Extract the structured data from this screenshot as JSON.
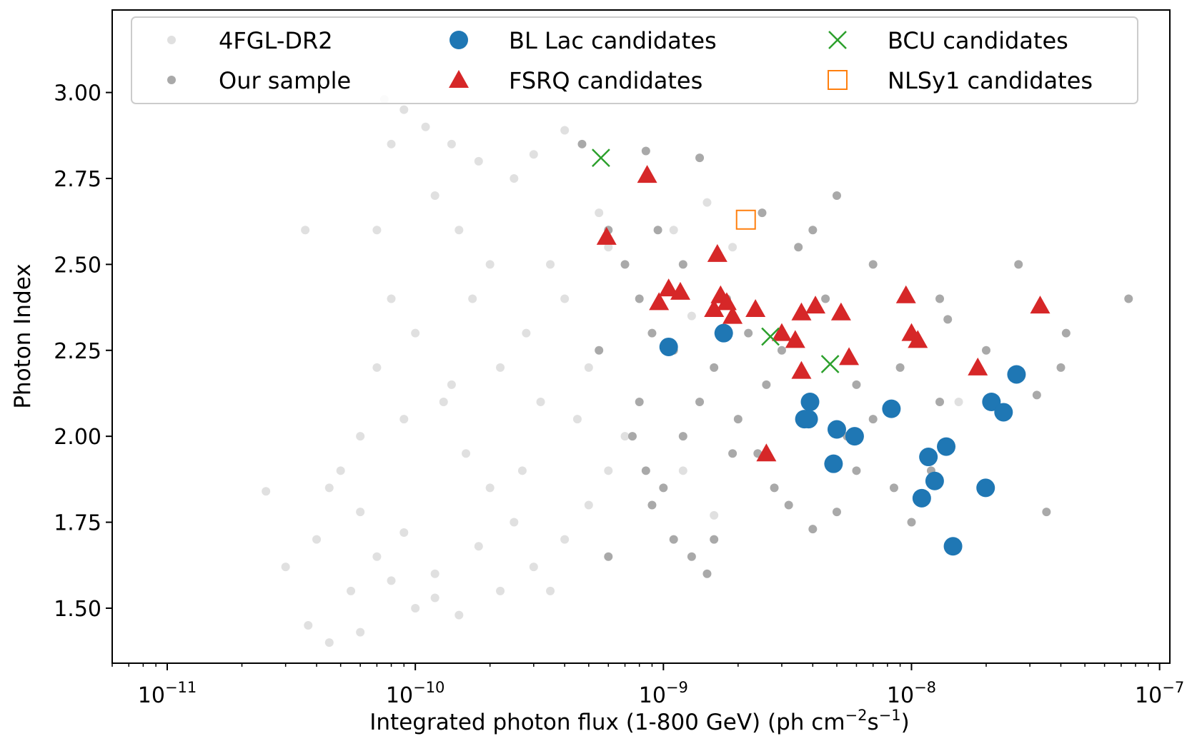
{
  "chart_data": {
    "type": "scatter",
    "xscale": "log",
    "xlabel": "Integrated photon flux (1-800 GeV) (ph cm",
    "xlabel_sup1": "−2",
    "xlabel_mid": "s",
    "xlabel_sup2": "−1",
    "xlabel_end": ")",
    "ylabel": "Photon Index",
    "xlim": [
      6e-12,
      1.1e-07
    ],
    "ylim": [
      1.34,
      3.24
    ],
    "x_ticks": [
      {
        "value": 1e-11,
        "base": "10",
        "exp": "−11"
      },
      {
        "value": 1e-10,
        "base": "10",
        "exp": "−10"
      },
      {
        "value": 1e-09,
        "base": "10",
        "exp": "−9"
      },
      {
        "value": 1e-08,
        "base": "10",
        "exp": "−8"
      },
      {
        "value": 1e-07,
        "base": "10",
        "exp": "−7"
      }
    ],
    "y_ticks": [
      {
        "value": 1.5,
        "label": "1.50"
      },
      {
        "value": 1.75,
        "label": "1.75"
      },
      {
        "value": 2.0,
        "label": "2.00"
      },
      {
        "value": 2.25,
        "label": "2.25"
      },
      {
        "value": 2.5,
        "label": "2.50"
      },
      {
        "value": 2.75,
        "label": "2.75"
      },
      {
        "value": 3.0,
        "label": "3.00"
      }
    ],
    "legend": {
      "position": "top",
      "entries": [
        {
          "label": "4FGL-DR2",
          "marker": "dot",
          "color": "#e0e0e0"
        },
        {
          "label": "BL Lac candidates",
          "marker": "circle",
          "color": "#1f77b4"
        },
        {
          "label": "BCU candidates",
          "marker": "x",
          "color": "#2ca02c"
        },
        {
          "label": "Our sample",
          "marker": "dot",
          "color": "#a9a9a9"
        },
        {
          "label": "FSRQ candidates",
          "marker": "triangle",
          "color": "#d62728"
        },
        {
          "label": "NLSy1 candidates",
          "marker": "square",
          "color": "#ff7f0e"
        }
      ]
    },
    "series": [
      {
        "name": "4FGL-DR2",
        "marker": "dot",
        "color": "#e0e0e0",
        "points": [
          [
            3.6e-11,
            2.6
          ],
          [
            3.7e-11,
            1.45
          ],
          [
            4.5e-11,
            1.4
          ],
          [
            6e-11,
            1.43
          ],
          [
            5.5e-11,
            1.55
          ],
          [
            4e-11,
            1.7
          ],
          [
            3e-11,
            1.62
          ],
          [
            2.5e-11,
            1.84
          ],
          [
            5e-11,
            1.9
          ],
          [
            4.5e-11,
            1.85
          ],
          [
            6e-11,
            1.78
          ],
          [
            7e-11,
            1.65
          ],
          [
            8e-11,
            1.58
          ],
          [
            9e-11,
            1.72
          ],
          [
            6e-11,
            2.0
          ],
          [
            7e-11,
            2.2
          ],
          [
            8e-11,
            2.4
          ],
          [
            7e-11,
            2.6
          ],
          [
            8e-11,
            2.85
          ],
          [
            9e-11,
            2.95
          ],
          [
            7.5e-11,
            2.98
          ],
          [
            1.1e-10,
            2.9
          ],
          [
            1.4e-10,
            2.85
          ],
          [
            1.8e-10,
            2.8
          ],
          [
            2.5e-10,
            2.75
          ],
          [
            3e-10,
            2.82
          ],
          [
            4e-10,
            2.89
          ],
          [
            1.2e-10,
            2.7
          ],
          [
            1.5e-10,
            2.6
          ],
          [
            2e-10,
            2.5
          ],
          [
            1e-10,
            2.3
          ],
          [
            1.3e-10,
            2.1
          ],
          [
            1.6e-10,
            1.95
          ],
          [
            2e-10,
            1.85
          ],
          [
            2.5e-10,
            1.75
          ],
          [
            3e-10,
            1.62
          ],
          [
            3.5e-10,
            1.55
          ],
          [
            1.8e-10,
            1.68
          ],
          [
            1.2e-10,
            1.6
          ],
          [
            1e-10,
            1.5
          ],
          [
            1.2e-10,
            1.53
          ],
          [
            1.5e-10,
            1.48
          ],
          [
            2.2e-10,
            1.55
          ],
          [
            4e-10,
            1.7
          ],
          [
            5e-10,
            1.8
          ],
          [
            6e-10,
            1.9
          ],
          [
            7e-10,
            2.0
          ],
          [
            5e-10,
            2.2
          ],
          [
            4e-10,
            2.4
          ],
          [
            6e-10,
            2.55
          ],
          [
            5.5e-10,
            2.65
          ],
          [
            2.8e-10,
            2.3
          ],
          [
            3.2e-10,
            2.1
          ],
          [
            2.2e-10,
            2.2
          ],
          [
            1.7e-10,
            2.4
          ],
          [
            3.5e-10,
            2.5
          ],
          [
            4.5e-10,
            2.05
          ],
          [
            2.7e-10,
            1.9
          ],
          [
            1.4e-10,
            2.15
          ],
          [
            9e-11,
            2.05
          ],
          [
            1.1e-09,
            2.6
          ],
          [
            1.5e-09,
            2.68
          ],
          [
            1.9e-09,
            2.55
          ],
          [
            1.3e-09,
            2.35
          ],
          [
            1.6e-09,
            1.77
          ],
          [
            1.2e-09,
            1.9
          ],
          [
            1.55e-08,
            2.1
          ]
        ]
      },
      {
        "name": "Our sample",
        "marker": "dot",
        "color": "#a9a9a9",
        "points": [
          [
            4.7e-10,
            2.85
          ],
          [
            6e-10,
            2.6
          ],
          [
            7e-10,
            2.5
          ],
          [
            8e-10,
            2.4
          ],
          [
            9e-10,
            2.3
          ],
          [
            8e-10,
            2.1
          ],
          [
            7.5e-10,
            2.0
          ],
          [
            8.5e-10,
            1.9
          ],
          [
            9e-10,
            1.8
          ],
          [
            1e-09,
            1.85
          ],
          [
            1.1e-09,
            1.7
          ],
          [
            1.3e-09,
            1.65
          ],
          [
            1.5e-09,
            1.6
          ],
          [
            1.6e-09,
            1.7
          ],
          [
            1.2e-09,
            2.0
          ],
          [
            1.4e-09,
            2.1
          ],
          [
            1.6e-09,
            2.2
          ],
          [
            2e-09,
            2.05
          ],
          [
            2.4e-09,
            1.95
          ],
          [
            2.8e-09,
            1.85
          ],
          [
            3.2e-09,
            1.8
          ],
          [
            4e-09,
            1.73
          ],
          [
            5e-09,
            1.78
          ],
          [
            6e-09,
            1.9
          ],
          [
            7e-09,
            2.05
          ],
          [
            8.5e-09,
            1.85
          ],
          [
            1e-08,
            1.75
          ],
          [
            1.2e-08,
            1.9
          ],
          [
            1.3e-08,
            2.1
          ],
          [
            2e-08,
            2.25
          ],
          [
            2.7e-08,
            2.5
          ],
          [
            3.2e-08,
            2.12
          ],
          [
            3.5e-08,
            1.78
          ],
          [
            4e-08,
            2.2
          ],
          [
            4.2e-08,
            2.3
          ],
          [
            7.5e-08,
            2.4
          ],
          [
            1.4e-08,
            2.34
          ],
          [
            1.3e-08,
            2.4
          ],
          [
            5e-09,
            2.7
          ],
          [
            4e-09,
            2.6
          ],
          [
            3.5e-09,
            2.55
          ],
          [
            2.5e-09,
            2.65
          ],
          [
            1.4e-09,
            2.81
          ],
          [
            8.5e-10,
            2.83
          ],
          [
            1.2e-09,
            2.5
          ],
          [
            1.8e-09,
            2.4
          ],
          [
            2.2e-09,
            2.3
          ],
          [
            3e-09,
            2.25
          ],
          [
            4.5e-09,
            2.4
          ],
          [
            3.8e-09,
            2.1
          ],
          [
            2.6e-09,
            2.15
          ],
          [
            1.9e-09,
            1.95
          ],
          [
            1.1e-09,
            2.25
          ],
          [
            6e-10,
            1.65
          ],
          [
            5.5e-10,
            2.25
          ],
          [
            9.5e-10,
            2.6
          ],
          [
            6e-09,
            2.15
          ],
          [
            5.5e-09,
            2.0
          ],
          [
            7e-09,
            2.5
          ],
          [
            9e-09,
            2.2
          ]
        ]
      },
      {
        "name": "BL Lac candidates",
        "marker": "circle",
        "color": "#1f77b4",
        "points": [
          [
            1.05e-09,
            2.26
          ],
          [
            1.75e-09,
            2.3
          ],
          [
            3.9e-09,
            2.1
          ],
          [
            3.7e-09,
            2.05
          ],
          [
            3.85e-09,
            2.05
          ],
          [
            5e-09,
            2.02
          ],
          [
            5.9e-09,
            2.0
          ],
          [
            4.85e-09,
            1.92
          ],
          [
            8.3e-09,
            2.08
          ],
          [
            1.17e-08,
            1.94
          ],
          [
            1.24e-08,
            1.87
          ],
          [
            1.1e-08,
            1.82
          ],
          [
            1.38e-08,
            1.97
          ],
          [
            1.47e-08,
            1.68
          ],
          [
            1.99e-08,
            1.85
          ],
          [
            2.1e-08,
            2.1
          ],
          [
            2.35e-08,
            2.07
          ],
          [
            2.65e-08,
            2.18
          ]
        ]
      },
      {
        "name": "FSRQ candidates",
        "marker": "triangle",
        "color": "#d62728",
        "points": [
          [
            8.6e-10,
            2.76
          ],
          [
            5.9e-10,
            2.58
          ],
          [
            1.65e-09,
            2.53
          ],
          [
            1.05e-09,
            2.43
          ],
          [
            1.17e-09,
            2.42
          ],
          [
            9.6e-10,
            2.39
          ],
          [
            1.7e-09,
            2.41
          ],
          [
            1.8e-09,
            2.39
          ],
          [
            1.6e-09,
            2.37
          ],
          [
            1.9e-09,
            2.35
          ],
          [
            2.35e-09,
            2.37
          ],
          [
            3.6e-09,
            2.36
          ],
          [
            4.1e-09,
            2.38
          ],
          [
            5.2e-09,
            2.36
          ],
          [
            3e-09,
            2.3
          ],
          [
            3.4e-09,
            2.28
          ],
          [
            3.6e-09,
            2.19
          ],
          [
            5.6e-09,
            2.23
          ],
          [
            2.6e-09,
            1.95
          ],
          [
            9.5e-09,
            2.41
          ],
          [
            1e-08,
            2.3
          ],
          [
            1.06e-08,
            2.28
          ],
          [
            1.85e-08,
            2.2
          ],
          [
            3.3e-08,
            2.38
          ]
        ]
      },
      {
        "name": "BCU candidates",
        "marker": "x",
        "color": "#2ca02c",
        "points": [
          [
            5.6e-10,
            2.81
          ],
          [
            2.7e-09,
            2.29
          ],
          [
            4.7e-09,
            2.21
          ]
        ]
      },
      {
        "name": "NLSy1 candidates",
        "marker": "square",
        "color": "#ff7f0e",
        "points": [
          [
            2.15e-09,
            2.63
          ]
        ]
      }
    ]
  }
}
